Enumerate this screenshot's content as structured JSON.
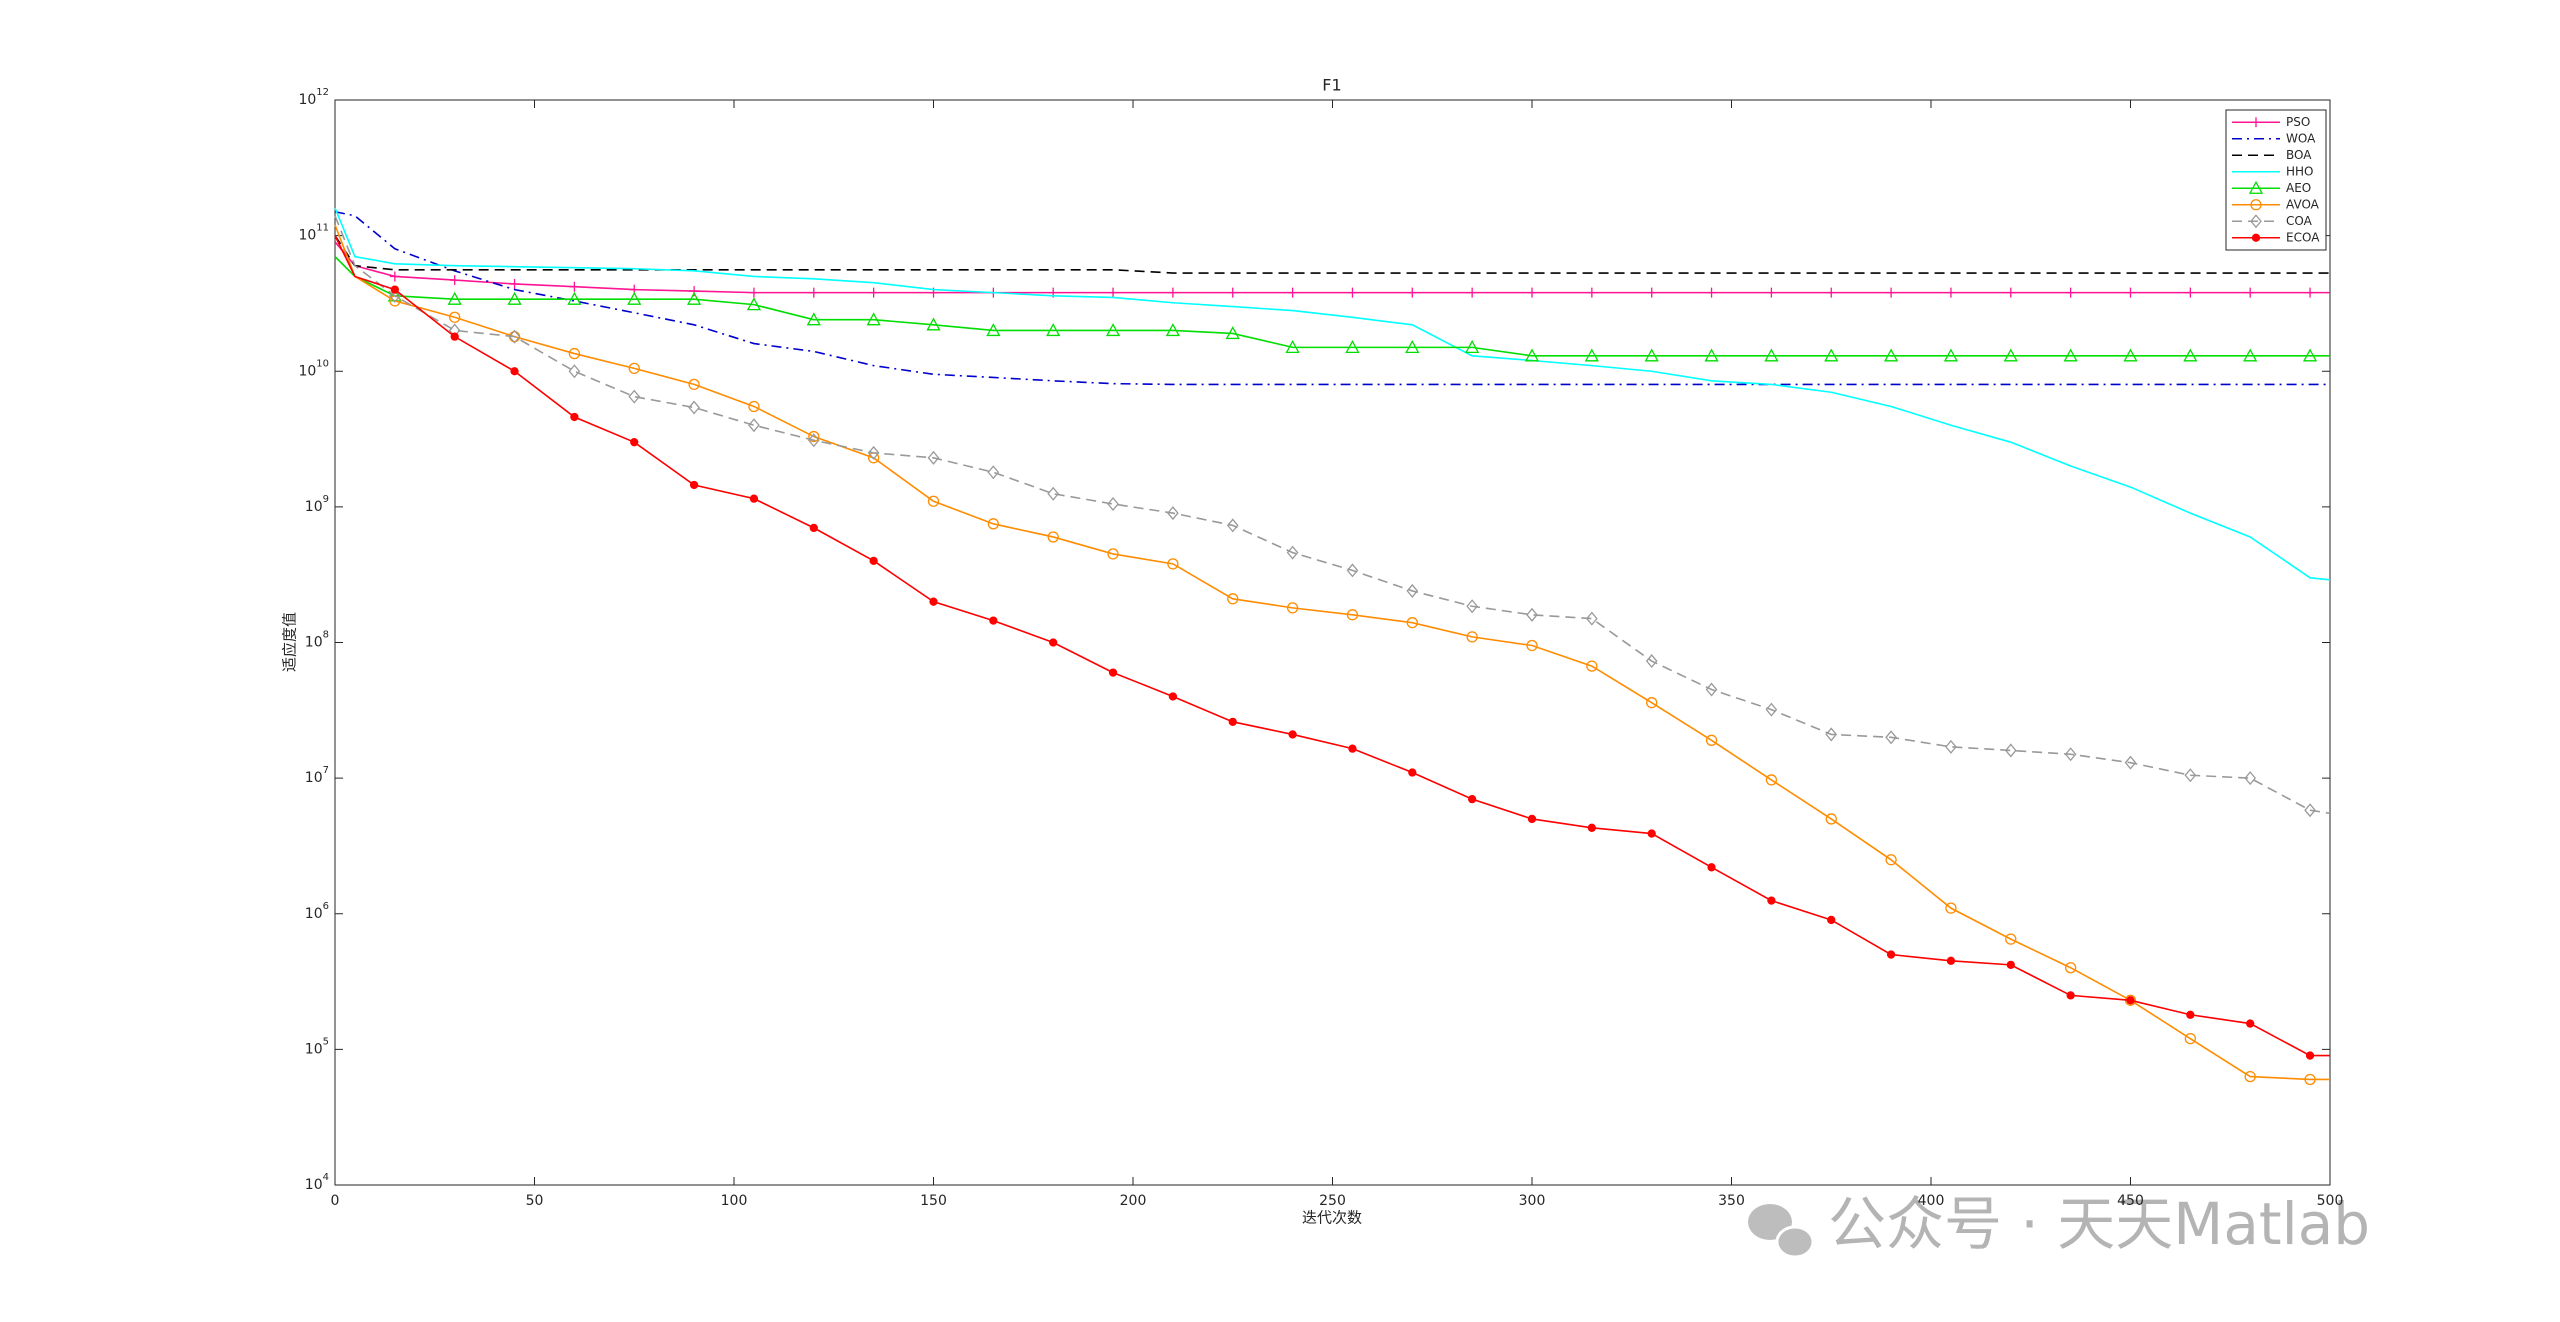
{
  "chart_data": {
    "type": "line",
    "title": "F1",
    "xlabel": "迭代次数",
    "ylabel": "适应度值",
    "log_y": true,
    "grid": false,
    "legend": "upper right",
    "watermark": "公众号 · 天天Matlab",
    "xlim": [
      0,
      500
    ],
    "xticks": [
      0,
      50,
      100,
      150,
      200,
      250,
      300,
      350,
      400,
      450,
      500
    ],
    "ylim": [
      10000,
      1000000000000
    ],
    "yticks": [
      {
        "value": 10000,
        "label": "10^4"
      },
      {
        "value": 100000,
        "label": "10^5"
      },
      {
        "value": 1000000,
        "label": "10^6"
      },
      {
        "value": 10000000,
        "label": "10^7"
      },
      {
        "value": 100000000,
        "label": "10^8"
      },
      {
        "value": 1000000000,
        "label": "10^9"
      },
      {
        "value": 10000000000,
        "label": "10^10"
      },
      {
        "value": 100000000000,
        "label": "10^11"
      },
      {
        "value": 1000000000000,
        "label": "10^12"
      }
    ],
    "x": [
      0,
      5,
      15,
      30,
      45,
      60,
      75,
      90,
      105,
      120,
      135,
      150,
      165,
      180,
      195,
      210,
      225,
      240,
      255,
      270,
      285,
      300,
      315,
      330,
      345,
      360,
      375,
      390,
      405,
      420,
      435,
      450,
      465,
      480,
      495,
      500
    ],
    "series": [
      {
        "name": "PSO",
        "color": "#ff1493",
        "dash": "solid",
        "marker": "plus",
        "values": [
          90000000000.0,
          60000000000.0,
          50000000000.0,
          47000000000.0,
          44000000000.0,
          42000000000.0,
          40000000000.0,
          39000000000.0,
          38000000000.0,
          38000000000.0,
          38000000000.0,
          38000000000.0,
          38000000000.0,
          38000000000.0,
          38000000000.0,
          38000000000.0,
          38000000000.0,
          38000000000.0,
          38000000000.0,
          38000000000.0,
          38000000000.0,
          38000000000.0,
          38000000000.0,
          38000000000.0,
          38000000000.0,
          38000000000.0,
          38000000000.0,
          38000000000.0,
          38000000000.0,
          38000000000.0,
          38000000000.0,
          38000000000.0,
          38000000000.0,
          38000000000.0,
          38000000000.0,
          38000000000.0
        ]
      },
      {
        "name": "WOA",
        "color": "#0000cd",
        "dash": "dashdot",
        "marker": "none",
        "values": [
          150000000000.0,
          140000000000.0,
          80000000000.0,
          55000000000.0,
          40000000000.0,
          33000000000.0,
          27000000000.0,
          22000000000.0,
          16000000000.0,
          14000000000.0,
          11000000000.0,
          9500000000.0,
          9000000000.0,
          8500000000.0,
          8100000000.0,
          8000000000.0,
          8000000000.0,
          8000000000.0,
          8000000000.0,
          8000000000.0,
          8000000000.0,
          8000000000.0,
          8000000000.0,
          8000000000.0,
          8000000000.0,
          8000000000.0,
          8000000000.0,
          8000000000.0,
          8000000000.0,
          8000000000.0,
          8000000000.0,
          8000000000.0,
          8000000000.0,
          8000000000.0,
          8000000000.0,
          8000000000.0
        ]
      },
      {
        "name": "BOA",
        "color": "#000000",
        "dash": "dashed",
        "marker": "none",
        "values": [
          100000000000.0,
          60000000000.0,
          56000000000.0,
          56000000000.0,
          56000000000.0,
          56000000000.0,
          56000000000.0,
          56000000000.0,
          56000000000.0,
          56000000000.0,
          56000000000.0,
          56000000000.0,
          56000000000.0,
          56000000000.0,
          56000000000.0,
          53000000000.0,
          53000000000.0,
          53000000000.0,
          53000000000.0,
          53000000000.0,
          53000000000.0,
          53000000000.0,
          53000000000.0,
          53000000000.0,
          53000000000.0,
          53000000000.0,
          53000000000.0,
          53000000000.0,
          53000000000.0,
          53000000000.0,
          53000000000.0,
          53000000000.0,
          53000000000.0,
          53000000000.0,
          53000000000.0,
          53000000000.0
        ]
      },
      {
        "name": "HHO",
        "color": "#00ffff",
        "dash": "solid",
        "marker": "none",
        "values": [
          160000000000.0,
          70000000000.0,
          62000000000.0,
          60000000000.0,
          59000000000.0,
          58000000000.0,
          57000000000.0,
          55000000000.0,
          50000000000.0,
          48000000000.0,
          45000000000.0,
          40000000000.0,
          38000000000.0,
          36000000000.0,
          35000000000.0,
          32000000000.0,
          30000000000.0,
          28000000000.0,
          25000000000.0,
          22000000000.0,
          13000000000.0,
          12000000000.0,
          11000000000.0,
          10000000000.0,
          8500000000.0,
          8000000000.0,
          7000000000.0,
          5500000000.0,
          4000000000.0,
          3000000000.0,
          2000000000.0,
          1400000000.0,
          900000000.0,
          600000000.0,
          300000000.0,
          290000000.0
        ]
      },
      {
        "name": "AEO",
        "color": "#00dd00",
        "dash": "solid",
        "marker": "triangle",
        "values": [
          70000000000.0,
          50000000000.0,
          36000000000.0,
          34000000000.0,
          34000000000.0,
          34000000000.0,
          34000000000.0,
          34000000000.0,
          31000000000.0,
          24000000000.0,
          24000000000.0,
          22000000000.0,
          20000000000.0,
          20000000000.0,
          20000000000.0,
          20000000000.0,
          19000000000.0,
          15000000000.0,
          15000000000.0,
          15000000000.0,
          15000000000.0,
          13000000000.0,
          13000000000.0,
          13000000000.0,
          13000000000.0,
          13000000000.0,
          13000000000.0,
          13000000000.0,
          13000000000.0,
          13000000000.0,
          13000000000.0,
          13000000000.0,
          13000000000.0,
          13000000000.0,
          13000000000.0,
          13000000000.0
        ]
      },
      {
        "name": "AVOA",
        "color": "#ff8c00",
        "dash": "solid",
        "marker": "circle",
        "values": [
          120000000000.0,
          50000000000.0,
          33000000000.0,
          25000000000.0,
          18000000000.0,
          13500000000.0,
          10500000000.0,
          8000000000.0,
          5500000000.0,
          3300000000.0,
          2300000000.0,
          1100000000.0,
          750000000.0,
          600000000.0,
          450000000.0,
          380000000.0,
          210000000.0,
          180000000.0,
          160000000.0,
          140000000.0,
          110000000.0,
          95000000.0,
          67000000.0,
          36000000.0,
          19000000.0,
          9700000.0,
          5000000.0,
          2500000.0,
          1100000.0,
          650000.0,
          400000.0,
          230000.0,
          120000.0,
          63000.0,
          60000.0,
          60000.0
        ]
      },
      {
        "name": "COA",
        "color": "#999999",
        "dash": "dashed",
        "marker": "diamond",
        "values": [
          140000000000.0,
          60000000000.0,
          36000000000.0,
          20000000000.0,
          18000000000.0,
          10000000000.0,
          6500000000.0,
          5400000000.0,
          4000000000.0,
          3100000000.0,
          2500000000.0,
          2300000000.0,
          1800000000.0,
          1250000000.0,
          1050000000.0,
          900000000.0,
          730000000.0,
          460000000.0,
          340000000.0,
          240000000.0,
          185000000.0,
          160000000.0,
          150000000.0,
          73000000.0,
          45000000.0,
          32000000.0,
          21000000.0,
          20000000.0,
          17000000.0,
          16000000.0,
          15000000.0,
          13000000.0,
          10500000.0,
          10000000.0,
          5800000.0,
          5500000.0
        ]
      },
      {
        "name": "ECOA",
        "color": "#ff0000",
        "dash": "solid",
        "marker": "dot",
        "values": [
          100000000000.0,
          50000000000.0,
          40000000000.0,
          18000000000.0,
          10000000000.0,
          4600000000.0,
          3000000000.0,
          1450000000.0,
          1150000000.0,
          700000000.0,
          400000000.0,
          200000000.0,
          145000000.0,
          100000000.0,
          60000000.0,
          40000000.0,
          26000000.0,
          21000000.0,
          16500000.0,
          11000000.0,
          7000000.0,
          5000000.0,
          4300000.0,
          3900000.0,
          2200000.0,
          1250000.0,
          900000.0,
          500000.0,
          450000.0,
          420000.0,
          250000.0,
          230000.0,
          180000.0,
          155000.0,
          90000.0,
          90000.0
        ]
      }
    ]
  }
}
